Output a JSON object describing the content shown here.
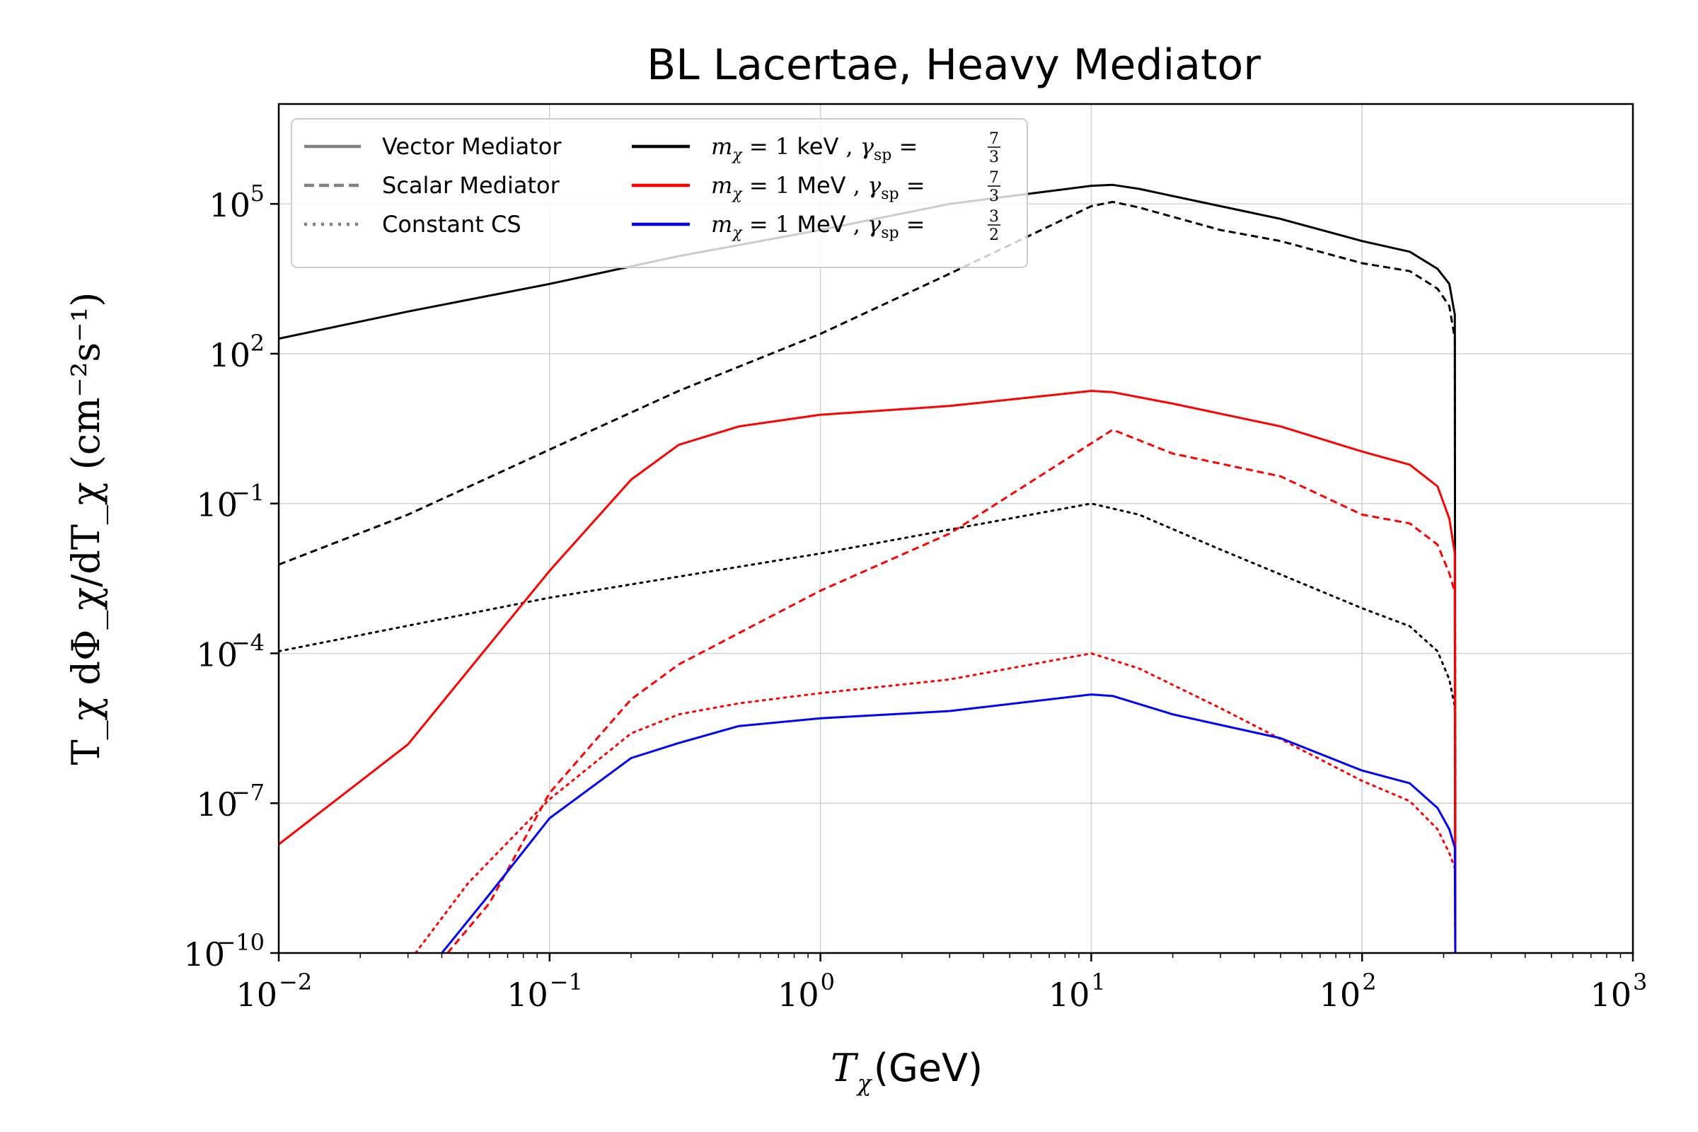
{
  "chart_data": {
    "type": "line",
    "title": "BL Lacertae, Heavy Mediator",
    "xlabel_symbol": "T",
    "xlabel_sub": "χ",
    "xlabel_unit": "(GeV)",
    "ylabel": "T_χ dΦ_χ/dT_χ (cm⁻²s⁻¹)",
    "xscale": "log",
    "yscale": "log",
    "xlim": [
      0.01,
      1000
    ],
    "ylim": [
      1e-10,
      10000000.0
    ],
    "grid": true,
    "x_ticks": [
      {
        "base": "10",
        "exp": "−2",
        "value": 0.01
      },
      {
        "base": "10",
        "exp": "−1",
        "value": 0.1
      },
      {
        "base": "10",
        "exp": "0",
        "value": 1
      },
      {
        "base": "10",
        "exp": "1",
        "value": 10
      },
      {
        "base": "10",
        "exp": "2",
        "value": 100
      },
      {
        "base": "10",
        "exp": "3",
        "value": 1000
      }
    ],
    "y_ticks": [
      {
        "base": "10",
        "exp": "−10",
        "value": 1e-10
      },
      {
        "base": "10",
        "exp": "−7",
        "value": 1e-07
      },
      {
        "base": "10",
        "exp": "−4",
        "value": 0.0001
      },
      {
        "base": "10",
        "exp": "−1",
        "value": 0.1
      },
      {
        "base": "10",
        "exp": "2",
        "value": 100
      },
      {
        "base": "10",
        "exp": "5",
        "value": 100000
      }
    ],
    "legend_style": [
      {
        "label": "Vector Mediator",
        "dash": "solid"
      },
      {
        "label": "Scalar Mediator",
        "dash": "dashed"
      },
      {
        "label": "Constant CS",
        "dash": "dotted"
      }
    ],
    "legend_mass": [
      {
        "color": "#000000",
        "label": "m_χ = 1 keV , γ_sp = 7/3",
        "mass_value": "1",
        "mass_unit": "keV",
        "gamma_num": "7",
        "gamma_den": "3"
      },
      {
        "color": "#ff0000",
        "label": "m_χ = 1 MeV , γ_sp = 7/3",
        "mass_value": "1",
        "mass_unit": "MeV",
        "gamma_num": "7",
        "gamma_den": "3"
      },
      {
        "color": "#0000ff",
        "label": "m_χ = 1 MeV , γ_sp = 3/2",
        "mass_value": "1",
        "mass_unit": "MeV",
        "gamma_num": "3",
        "gamma_den": "2"
      }
    ],
    "series": [
      {
        "name": "1 keV, γ=7/3, Vector",
        "color": "#000000",
        "dash": "solid",
        "points": [
          [
            0.01,
            200
          ],
          [
            0.03,
            700
          ],
          [
            0.1,
            2500
          ],
          [
            0.3,
            9000
          ],
          [
            1,
            30000
          ],
          [
            3,
            100000
          ],
          [
            10,
            230000
          ],
          [
            12,
            240000
          ],
          [
            15,
            200000
          ],
          [
            30,
            90000
          ],
          [
            50,
            50000
          ],
          [
            100,
            18000
          ],
          [
            150,
            11000
          ],
          [
            190,
            5000
          ],
          [
            210,
            2500
          ],
          [
            220,
            600
          ],
          [
            221,
            1e-10
          ]
        ]
      },
      {
        "name": "1 keV, γ=7/3, Scalar",
        "color": "#000000",
        "dash": "dashed",
        "points": [
          [
            0.01,
            0.006
          ],
          [
            0.03,
            0.06
          ],
          [
            0.1,
            1.2
          ],
          [
            0.3,
            18
          ],
          [
            1,
            250
          ],
          [
            3,
            4000
          ],
          [
            10,
            90000
          ],
          [
            12,
            110000
          ],
          [
            15,
            85000
          ],
          [
            30,
            30000
          ],
          [
            50,
            18000
          ],
          [
            100,
            6500
          ],
          [
            150,
            4500
          ],
          [
            190,
            2000
          ],
          [
            210,
            900
          ],
          [
            220,
            200
          ],
          [
            221,
            1e-10
          ]
        ]
      },
      {
        "name": "1 keV, γ=7/3, Constant CS",
        "color": "#000000",
        "dash": "dotted",
        "points": [
          [
            0.01,
            0.00011
          ],
          [
            0.1,
            0.0013
          ],
          [
            1,
            0.01
          ],
          [
            3,
            0.03
          ],
          [
            10,
            0.1
          ],
          [
            15,
            0.06
          ],
          [
            30,
            0.012
          ],
          [
            100,
            0.0008
          ],
          [
            150,
            0.00035
          ],
          [
            190,
            0.00011
          ],
          [
            210,
            3e-05
          ],
          [
            220,
            8.5e-06
          ],
          [
            221,
            1e-10
          ]
        ]
      },
      {
        "name": "1 MeV, γ=7/3, Vector",
        "color": "#ff0000",
        "dash": "solid",
        "points": [
          [
            0.01,
            1.5e-08
          ],
          [
            0.03,
            1.5e-06
          ],
          [
            0.1,
            0.0045
          ],
          [
            0.2,
            0.3
          ],
          [
            0.3,
            1.5
          ],
          [
            0.5,
            3.5
          ],
          [
            1,
            6
          ],
          [
            3,
            9
          ],
          [
            10,
            18
          ],
          [
            12,
            17
          ],
          [
            20,
            10
          ],
          [
            50,
            3.5
          ],
          [
            100,
            1.1
          ],
          [
            150,
            0.6
          ],
          [
            190,
            0.22
          ],
          [
            210,
            0.05
          ],
          [
            220,
            0.01
          ],
          [
            221,
            1e-10
          ]
        ]
      },
      {
        "name": "1 MeV, γ=7/3, Scalar",
        "color": "#ff0000",
        "dash": "dashed",
        "points": [
          [
            0.042,
            1e-10
          ],
          [
            0.06,
            1e-09
          ],
          [
            0.1,
            1.6e-07
          ],
          [
            0.2,
            1.2e-05
          ],
          [
            0.3,
            6e-05
          ],
          [
            1,
            0.0018
          ],
          [
            3,
            0.025
          ],
          [
            10,
            1.6
          ],
          [
            12,
            3
          ],
          [
            20,
            1
          ],
          [
            50,
            0.35
          ],
          [
            100,
            0.06
          ],
          [
            150,
            0.04
          ],
          [
            190,
            0.015
          ],
          [
            210,
            0.004
          ],
          [
            220,
            0.0017
          ],
          [
            221,
            1e-10
          ]
        ]
      },
      {
        "name": "1 MeV, γ=7/3, Constant CS",
        "color": "#ff0000",
        "dash": "dotted",
        "points": [
          [
            0.032,
            1e-10
          ],
          [
            0.05,
            2.5e-09
          ],
          [
            0.1,
            1.2e-07
          ],
          [
            0.2,
            2.5e-06
          ],
          [
            0.3,
            6e-06
          ],
          [
            0.5,
            1e-05
          ],
          [
            1,
            1.6e-05
          ],
          [
            3,
            3e-05
          ],
          [
            10,
            0.0001
          ],
          [
            15,
            5e-05
          ],
          [
            30,
            8e-06
          ],
          [
            100,
            2.8e-07
          ],
          [
            150,
            1.1e-07
          ],
          [
            190,
            3e-08
          ],
          [
            210,
            1e-08
          ],
          [
            220,
            5e-09
          ],
          [
            221,
            1e-10
          ]
        ]
      },
      {
        "name": "1 MeV, γ=3/2, Vector",
        "color": "#0000ff",
        "dash": "solid",
        "points": [
          [
            0.04,
            1e-10
          ],
          [
            0.06,
            1.5e-09
          ],
          [
            0.1,
            5e-08
          ],
          [
            0.2,
            8e-07
          ],
          [
            0.3,
            1.6e-06
          ],
          [
            0.5,
            3.5e-06
          ],
          [
            1,
            5e-06
          ],
          [
            3,
            7e-06
          ],
          [
            10,
            1.5e-05
          ],
          [
            12,
            1.4e-05
          ],
          [
            20,
            6e-06
          ],
          [
            50,
            2e-06
          ],
          [
            100,
            4.5e-07
          ],
          [
            150,
            2.5e-07
          ],
          [
            190,
            8e-08
          ],
          [
            210,
            3e-08
          ],
          [
            220,
            1.3e-08
          ],
          [
            221,
            1e-10
          ]
        ]
      }
    ]
  }
}
